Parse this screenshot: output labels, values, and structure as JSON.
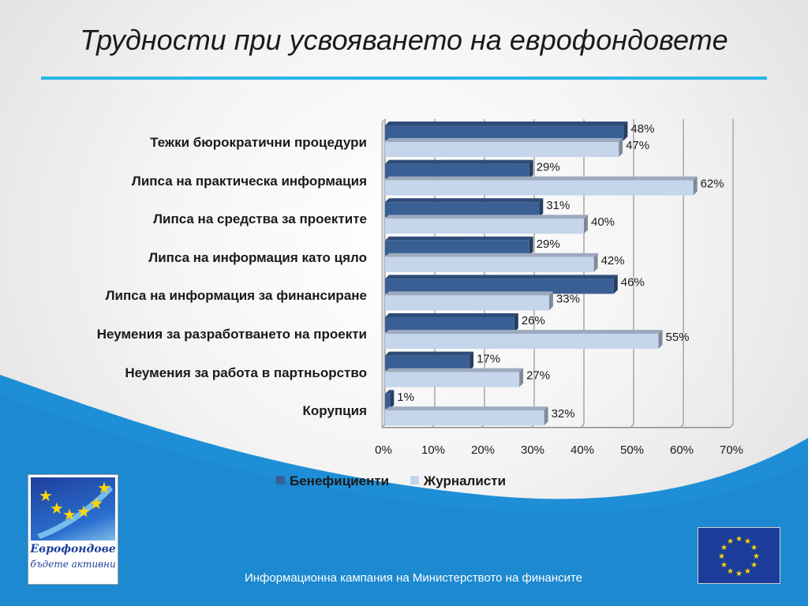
{
  "title": "Трудности при усвояването на еврофондовете",
  "colors": {
    "accent_line": "#29b6e8",
    "background_swoosh": "#1e8fd6",
    "series_beneficiaries": "#3a5f95",
    "series_journalists": "#c4d5ec"
  },
  "chart_data": {
    "type": "bar",
    "orientation": "horizontal",
    "categories": [
      "Тежки бюрократични процедури",
      "Липса на практическа информация",
      "Липса на средства за проектите",
      "Липса на информация като цяло",
      "Липса на информация за финансиране",
      "Неумения за разработването на проекти",
      "Неумения за работа в партньорство",
      "Корупция"
    ],
    "series": [
      {
        "name": "Бенефициенти",
        "values": [
          48,
          29,
          31,
          29,
          46,
          26,
          17,
          1
        ],
        "labels": [
          "48%",
          "29%",
          "31%",
          "29%",
          "46%",
          "26%",
          "17%",
          "1%"
        ]
      },
      {
        "name": "Журналисти",
        "values": [
          47,
          62,
          40,
          42,
          33,
          55,
          27,
          32
        ],
        "labels": [
          "47%",
          "62%",
          "40%",
          "42%",
          "33%",
          "55%",
          "27%",
          "32%"
        ]
      }
    ],
    "xlim": [
      0,
      70
    ],
    "ticks": [
      "0%",
      "10%",
      "20%",
      "30%",
      "40%",
      "50%",
      "60%",
      "70%"
    ],
    "grid": true,
    "legend_position": "bottom"
  },
  "logo": {
    "line1": "Еврофондове",
    "line2": "бъдете активни"
  },
  "footer": "Информационна кампания на Министерството на финансите"
}
